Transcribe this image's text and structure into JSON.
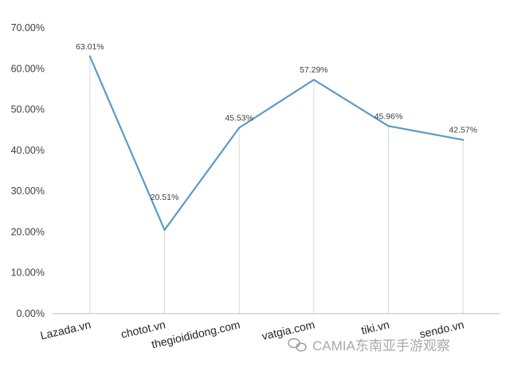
{
  "chart_data": {
    "type": "line",
    "categories": [
      "Lazada.vn",
      "chotot.vn",
      "thegioididong.com",
      "vatgia.com",
      "tiki.vn",
      "sendo.vn"
    ],
    "series": [
      {
        "values": [
          63.01,
          20.51,
          45.53,
          57.29,
          45.96,
          42.57
        ],
        "labels": [
          "63.01%",
          "20.51%",
          "45.53%",
          "57.29%",
          "45.96%",
          "42.57%"
        ]
      }
    ],
    "y_ticks": [
      "0.00%",
      "10.00%",
      "20.00%",
      "30.00%",
      "40.00%",
      "50.00%",
      "60.00%",
      "70.00%"
    ],
    "ylim": [
      0,
      70
    ],
    "title": "",
    "xlabel": "",
    "ylabel": "",
    "grid": "vertical drop lines",
    "colors": {
      "line": "#5b9bc6",
      "droplines": "#d9d9d9",
      "axis": "#bfbfbf"
    }
  },
  "watermark": {
    "text": "CAMIA东南亚手游观察",
    "icon": "wechat-icon"
  }
}
